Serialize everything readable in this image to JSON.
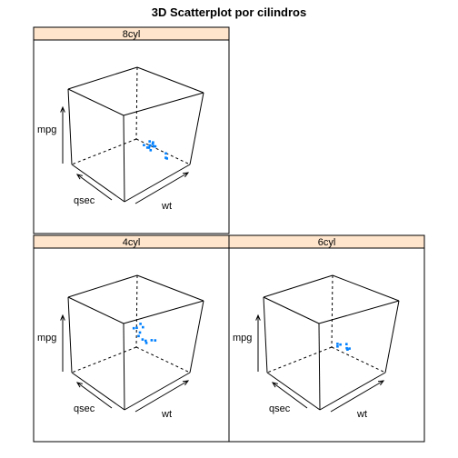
{
  "chart_data": {
    "type": "scatter",
    "title": "3D Scatterplot por cilindros",
    "axes": {
      "x": "wt",
      "y": "mpg",
      "z": "qsec"
    },
    "colors": {
      "points": "#0080ff",
      "strip": "#ffe5cc",
      "frame": "#000000"
    },
    "panels": [
      {
        "label": "8cyl",
        "points": [
          {
            "wt": 3.44,
            "mpg": 18.7,
            "qsec": 17.02
          },
          {
            "wt": 3.57,
            "mpg": 14.3,
            "qsec": 15.84
          },
          {
            "wt": 4.07,
            "mpg": 16.4,
            "qsec": 17.4
          },
          {
            "wt": 3.73,
            "mpg": 17.3,
            "qsec": 17.6
          },
          {
            "wt": 3.78,
            "mpg": 15.2,
            "qsec": 18.0
          },
          {
            "wt": 5.25,
            "mpg": 10.4,
            "qsec": 17.98
          },
          {
            "wt": 5.42,
            "mpg": 10.4,
            "qsec": 17.82
          },
          {
            "wt": 5.35,
            "mpg": 14.7,
            "qsec": 17.42
          },
          {
            "wt": 3.52,
            "mpg": 15.5,
            "qsec": 16.87
          },
          {
            "wt": 3.44,
            "mpg": 15.2,
            "qsec": 17.3
          },
          {
            "wt": 3.84,
            "mpg": 13.3,
            "qsec": 15.41
          },
          {
            "wt": 3.85,
            "mpg": 19.2,
            "qsec": 17.05
          },
          {
            "wt": 3.17,
            "mpg": 15.8,
            "qsec": 14.5
          },
          {
            "wt": 3.57,
            "mpg": 15.0,
            "qsec": 14.6
          }
        ]
      },
      {
        "label": "4cyl",
        "points": [
          {
            "wt": 2.32,
            "mpg": 22.8,
            "qsec": 18.61
          },
          {
            "wt": 3.19,
            "mpg": 24.4,
            "qsec": 20.0
          },
          {
            "wt": 3.15,
            "mpg": 22.8,
            "qsec": 22.9
          },
          {
            "wt": 2.2,
            "mpg": 32.4,
            "qsec": 19.47
          },
          {
            "wt": 1.615,
            "mpg": 30.4,
            "qsec": 18.52
          },
          {
            "wt": 1.835,
            "mpg": 33.9,
            "qsec": 19.9
          },
          {
            "wt": 2.465,
            "mpg": 21.5,
            "qsec": 20.01
          },
          {
            "wt": 1.935,
            "mpg": 27.3,
            "qsec": 18.9
          },
          {
            "wt": 2.14,
            "mpg": 26.0,
            "qsec": 16.7
          },
          {
            "wt": 1.513,
            "mpg": 30.4,
            "qsec": 16.9
          },
          {
            "wt": 2.78,
            "mpg": 21.4,
            "qsec": 18.6
          }
        ]
      },
      {
        "label": "6cyl",
        "points": [
          {
            "wt": 2.62,
            "mpg": 21.0,
            "qsec": 16.46
          },
          {
            "wt": 2.875,
            "mpg": 21.0,
            "qsec": 17.02
          },
          {
            "wt": 3.215,
            "mpg": 21.4,
            "qsec": 19.44
          },
          {
            "wt": 3.46,
            "mpg": 18.1,
            "qsec": 20.22
          },
          {
            "wt": 3.44,
            "mpg": 19.2,
            "qsec": 18.3
          },
          {
            "wt": 3.44,
            "mpg": 17.8,
            "qsec": 18.9
          },
          {
            "wt": 2.77,
            "mpg": 19.7,
            "qsec": 15.5
          }
        ]
      }
    ]
  }
}
